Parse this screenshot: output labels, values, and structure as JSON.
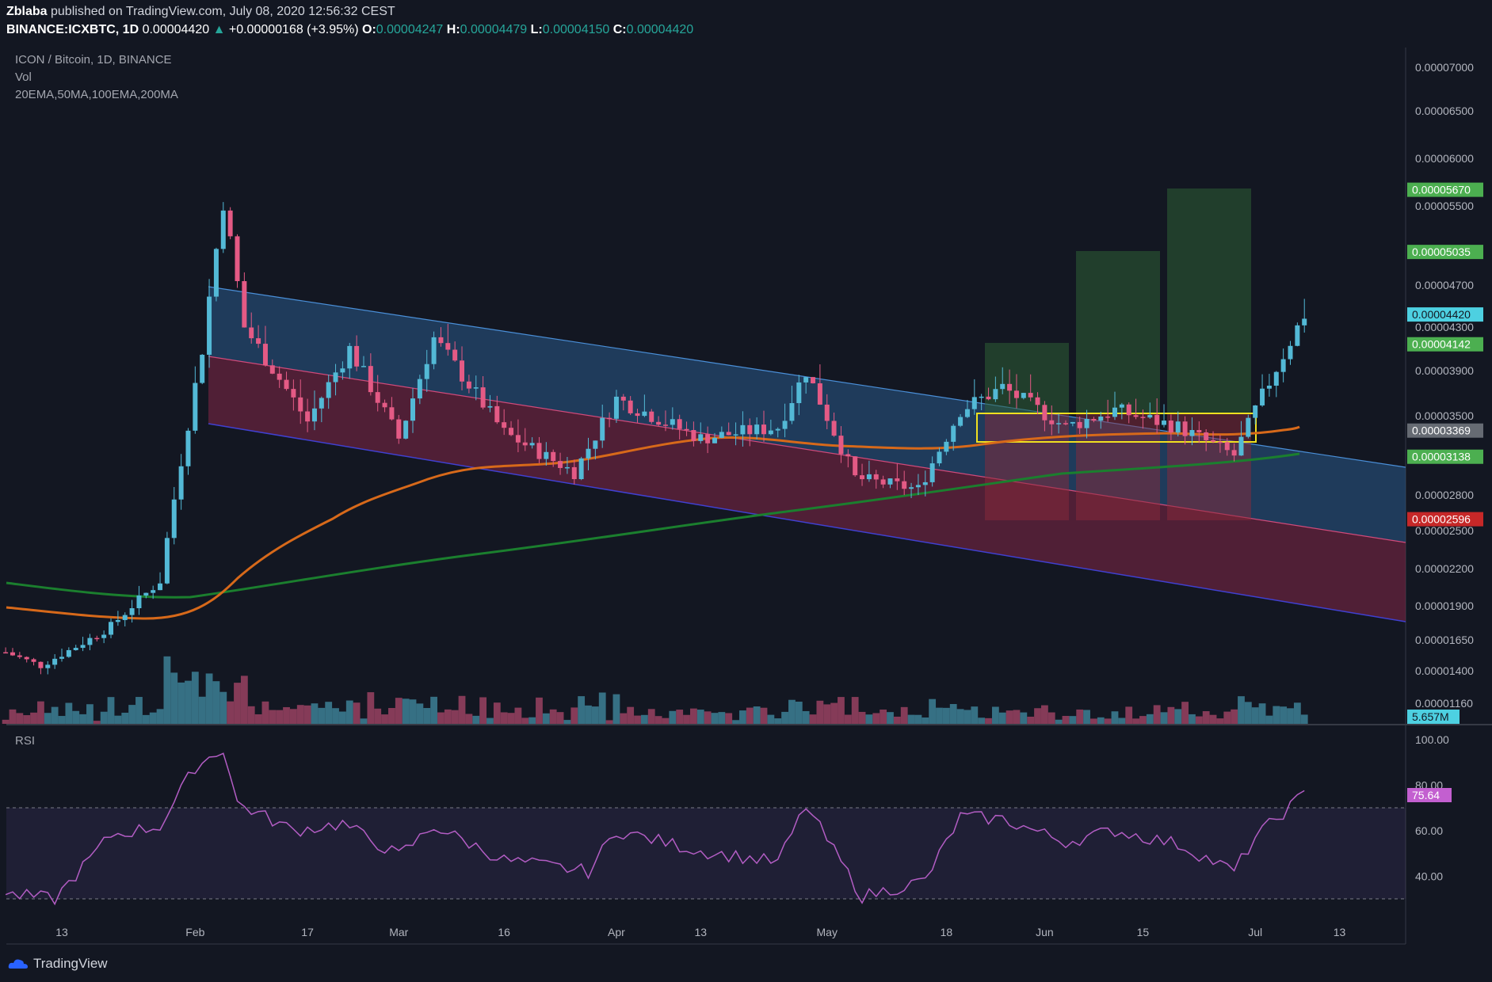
{
  "header": {
    "publisher": "Zblaba",
    "published_line": " published on TradingView.com, July 08, 2020 12:56:32 CEST",
    "symbol": "BINANCE:ICXBTC, 1D",
    "last": "0.00004420",
    "change": "+0.00000168 (+3.95%)",
    "o_label": "O:",
    "o": "0.00004247",
    "h_label": "H:",
    "h": "0.00004479",
    "l_label": "L:",
    "l": "0.00004150",
    "c_label": "C:",
    "c": "0.00004420"
  },
  "legend": {
    "title": "ICON / Bitcoin, 1D, BINANCE",
    "vol": "Vol",
    "mas": "20EMA,50MA,100EMA,200MA",
    "rsi": "RSI"
  },
  "footer": {
    "brand": "TradingView"
  },
  "colors": {
    "background": "#131722",
    "up": "#53b9d6",
    "down": "#e45a85",
    "ema_orange": "#d7691a",
    "ma_green": "#1b7f2e",
    "rsi_line": "#b35dc4",
    "tag_green": "#4caf50",
    "tag_red": "#c62828",
    "tag_cyan": "#4dd0e1",
    "tag_gray": "#666b73",
    "tag_violet": "#c35fd0"
  },
  "chart_data": [
    {
      "type": "candlestick",
      "title": "ICON / Bitcoin, 1D, BINANCE",
      "y_ticks": [
        "0.00007000",
        "0.00006500",
        "0.00006000",
        "0.00005500",
        "0.00004700",
        "0.00004300",
        "0.00003900",
        "0.00003500",
        "0.00002800",
        "0.00002500",
        "0.00002200",
        "0.00001900",
        "0.00001650",
        "0.00001400",
        "0.00001160"
      ],
      "x_ticks": [
        "13",
        "Feb",
        "17",
        "Mar",
        "16",
        "Apr",
        "13",
        "May",
        "18",
        "Jun",
        "15",
        "Jul",
        "13"
      ],
      "price_tags": [
        {
          "label": "0.00005670",
          "price": 5.67e-05,
          "color": "green"
        },
        {
          "label": "0.00005035",
          "price": 5.035e-05,
          "color": "green"
        },
        {
          "label": "0.00004420",
          "price": 4.42e-05,
          "color": "cyan"
        },
        {
          "label": "0.00004142",
          "price": 4.142e-05,
          "color": "green"
        },
        {
          "label": "0.00003369",
          "price": 3.369e-05,
          "color": "gray"
        },
        {
          "label": "0.00003138",
          "price": 3.138e-05,
          "color": "green"
        },
        {
          "label": "0.00002596",
          "price": 2.596e-05,
          "color": "red"
        }
      ],
      "volume_tag": "5.657M",
      "ohlc_sample": {
        "start": "2020-01-05",
        "end": "2020-07-08",
        "interval": "1D",
        "anchors": [
          [
            "2020-01-05",
            1.55e-05
          ],
          [
            "2020-01-10",
            1.44e-05
          ],
          [
            "2020-01-20",
            1.75e-05
          ],
          [
            "2020-01-27",
            2.1e-05
          ],
          [
            "2020-02-02",
            4.1e-05
          ],
          [
            "2020-02-05",
            5.55e-05
          ],
          [
            "2020-02-08",
            4.3e-05
          ],
          [
            "2020-02-17",
            3.45e-05
          ],
          [
            "2020-02-23",
            4.1e-05
          ],
          [
            "2020-03-01",
            3.3e-05
          ],
          [
            "2020-03-06",
            4.2e-05
          ],
          [
            "2020-03-16",
            3.35e-05
          ],
          [
            "2020-03-26",
            3e-05
          ],
          [
            "2020-04-01",
            3.65e-05
          ],
          [
            "2020-04-13",
            3.3e-05
          ],
          [
            "2020-04-24",
            3.4e-05
          ],
          [
            "2020-04-28",
            3.9e-05
          ],
          [
            "2020-05-05",
            2.95e-05
          ],
          [
            "2020-05-14",
            2.85e-05
          ],
          [
            "2020-05-20",
            3.55e-05
          ],
          [
            "2020-05-26",
            3.75e-05
          ],
          [
            "2020-06-04",
            3.4e-05
          ],
          [
            "2020-06-11",
            3.55e-05
          ],
          [
            "2020-06-20",
            3.4e-05
          ],
          [
            "2020-06-28",
            3.15e-05
          ],
          [
            "2020-07-01",
            3.55e-05
          ],
          [
            "2020-07-08",
            4.42e-05
          ]
        ]
      }
    },
    {
      "type": "line",
      "title": "RSI",
      "y_ticks": [
        "100.00",
        "80.00",
        "60.00",
        "40.00"
      ],
      "bands": [
        70,
        30
      ],
      "last_value": "75.64",
      "anchors": [
        [
          "2020-01-05",
          32
        ],
        [
          "2020-01-12",
          30
        ],
        [
          "2020-01-20",
          58
        ],
        [
          "2020-01-27",
          62
        ],
        [
          "2020-02-01",
          88
        ],
        [
          "2020-02-05",
          96
        ],
        [
          "2020-02-07",
          72
        ],
        [
          "2020-02-15",
          60
        ],
        [
          "2020-02-22",
          63
        ],
        [
          "2020-03-01",
          49
        ],
        [
          "2020-03-06",
          62
        ],
        [
          "2020-03-16",
          47
        ],
        [
          "2020-03-28",
          42
        ],
        [
          "2020-04-01",
          60
        ],
        [
          "2020-04-13",
          51
        ],
        [
          "2020-04-24",
          46
        ],
        [
          "2020-04-28",
          71
        ],
        [
          "2020-05-06",
          31
        ],
        [
          "2020-05-15",
          38
        ],
        [
          "2020-05-20",
          66
        ],
        [
          "2020-05-26",
          65
        ],
        [
          "2020-06-04",
          55
        ],
        [
          "2020-06-11",
          60
        ],
        [
          "2020-06-20",
          54
        ],
        [
          "2020-06-28",
          42
        ],
        [
          "2020-07-01",
          57
        ],
        [
          "2020-07-08",
          76
        ]
      ]
    }
  ]
}
